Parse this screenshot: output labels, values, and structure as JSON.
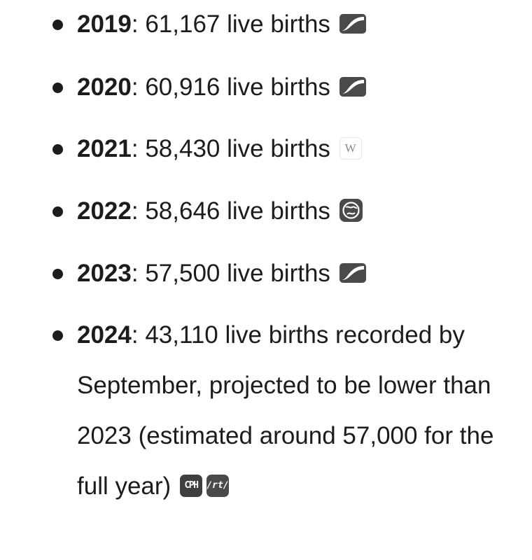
{
  "entries": [
    {
      "year": "2019",
      "text": ": 61,167 live births",
      "source_icon": "flag-icon"
    },
    {
      "year": "2020",
      "text": ": 60,916 live births",
      "source_icon": "flag-icon"
    },
    {
      "year": "2021",
      "text": ": 58,430 live births",
      "source_icon": "wikipedia-icon",
      "source_glyph": "W"
    },
    {
      "year": "2022",
      "text": ": 58,646 live births",
      "source_icon": "globe-icon"
    },
    {
      "year": "2023",
      "text": ": 57,500 live births",
      "source_icon": "flag-icon"
    },
    {
      "year": "2024",
      "text": ": 43,110 live births recorded by September, projected to be lower than 2023 (estimated around 57,000 for the full year)",
      "source_icons": [
        {
          "name": "cph-icon",
          "glyph": "CPH"
        },
        {
          "name": "rt-icon",
          "glyph": "/rt/"
        }
      ]
    }
  ],
  "colors": {
    "text": "#1c1c1c",
    "icon_dark": "#4a4a4a",
    "background": "#ffffff"
  }
}
